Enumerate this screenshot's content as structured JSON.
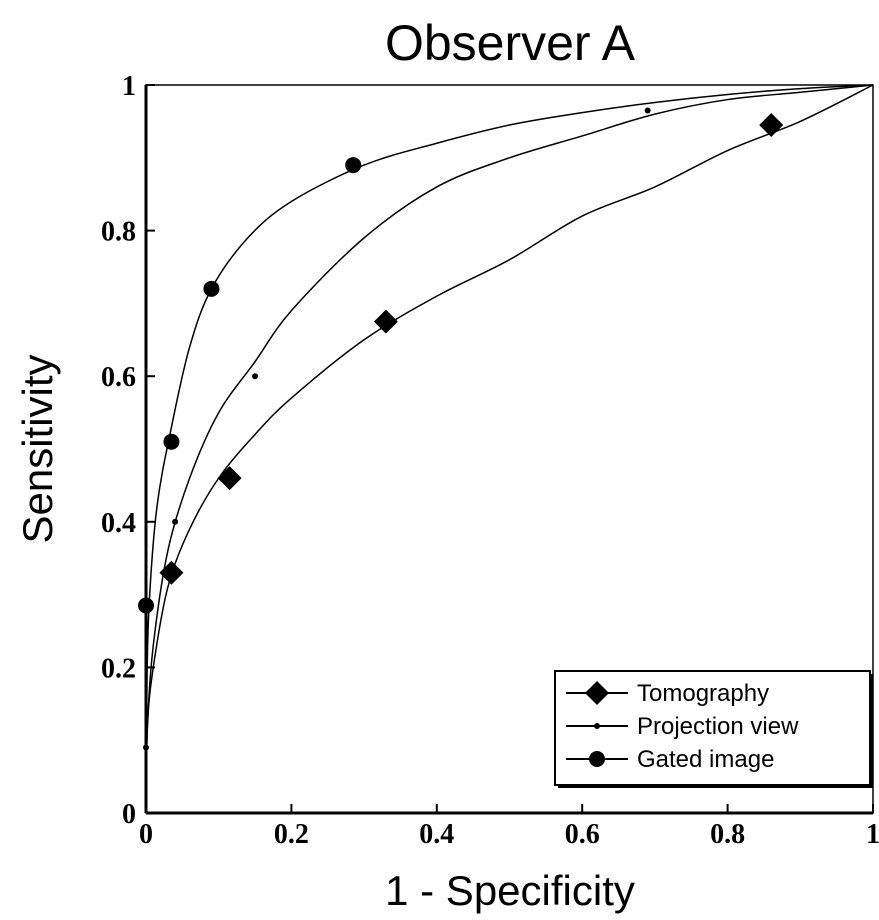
{
  "chart_data": {
    "type": "line",
    "title": "Observer A",
    "xlabel": "1 - Specificity",
    "ylabel": "Sensitivity",
    "xlim": [
      0,
      1
    ],
    "ylim": [
      0,
      1
    ],
    "x_ticks": [
      "0",
      "0.2",
      "0.4",
      "0.6",
      "0.8",
      "1"
    ],
    "y_ticks": [
      "0",
      "0.2",
      "0.4",
      "0.6",
      "0.8",
      "1"
    ],
    "grid": false,
    "legend_position": "bottom-right",
    "series": [
      {
        "name": "Tomography",
        "marker": "diamond",
        "points": [
          [
            0.035,
            0.33
          ],
          [
            0.115,
            0.46
          ],
          [
            0.33,
            0.675
          ],
          [
            0.86,
            0.945
          ]
        ],
        "curve": [
          [
            0,
            0
          ],
          [
            0.002,
            0.12
          ],
          [
            0.01,
            0.2
          ],
          [
            0.03,
            0.31
          ],
          [
            0.06,
            0.39
          ],
          [
            0.1,
            0.46
          ],
          [
            0.15,
            0.52
          ],
          [
            0.2,
            0.57
          ],
          [
            0.3,
            0.65
          ],
          [
            0.4,
            0.71
          ],
          [
            0.5,
            0.76
          ],
          [
            0.6,
            0.82
          ],
          [
            0.7,
            0.86
          ],
          [
            0.8,
            0.91
          ],
          [
            0.9,
            0.95
          ],
          [
            1,
            1
          ]
        ]
      },
      {
        "name": "Projection view",
        "marker": "small-dot",
        "points": [
          [
            0,
            0.09
          ],
          [
            0.04,
            0.4
          ],
          [
            0.15,
            0.6
          ],
          [
            0.69,
            0.965
          ]
        ],
        "curve": [
          [
            0,
            0
          ],
          [
            0.002,
            0.12
          ],
          [
            0.01,
            0.23
          ],
          [
            0.03,
            0.36
          ],
          [
            0.06,
            0.46
          ],
          [
            0.1,
            0.55
          ],
          [
            0.15,
            0.62
          ],
          [
            0.2,
            0.69
          ],
          [
            0.3,
            0.79
          ],
          [
            0.4,
            0.86
          ],
          [
            0.5,
            0.9
          ],
          [
            0.6,
            0.93
          ],
          [
            0.7,
            0.96
          ],
          [
            0.8,
            0.98
          ],
          [
            0.9,
            0.99
          ],
          [
            1,
            1
          ]
        ]
      },
      {
        "name": "Gated image",
        "marker": "circle",
        "points": [
          [
            0,
            0.285
          ],
          [
            0.035,
            0.51
          ],
          [
            0.09,
            0.72
          ],
          [
            0.285,
            0.89
          ]
        ],
        "curve": [
          [
            0,
            0
          ],
          [
            0.001,
            0.15
          ],
          [
            0.004,
            0.28
          ],
          [
            0.015,
            0.42
          ],
          [
            0.035,
            0.53
          ],
          [
            0.06,
            0.64
          ],
          [
            0.09,
            0.72
          ],
          [
            0.14,
            0.79
          ],
          [
            0.2,
            0.84
          ],
          [
            0.3,
            0.89
          ],
          [
            0.4,
            0.92
          ],
          [
            0.5,
            0.945
          ],
          [
            0.6,
            0.962
          ],
          [
            0.7,
            0.976
          ],
          [
            0.8,
            0.987
          ],
          [
            0.9,
            0.995
          ],
          [
            1,
            1
          ]
        ]
      }
    ]
  }
}
